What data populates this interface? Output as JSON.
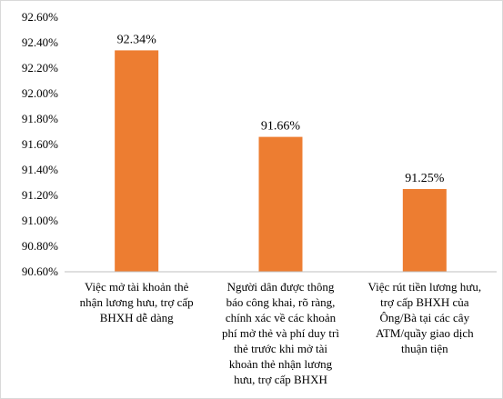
{
  "chart_data": {
    "type": "bar",
    "categories": [
      "Việc mở tài khoản thẻ\nnhận lương hưu, trợ cấp\nBHXH dễ dàng",
      "Người dân được thông\nbáo công khai, rõ ràng,\nchính xác về các khoản\nphí mở thẻ và phí duy trì\nthẻ trước khi mở tài\nkhoản thẻ nhận lương\nhưu, trợ cấp BHXH",
      "Việc rút tiền lương hưu,\ntrợ cấp BHXH của\nÔng/Bà tại các cây\nATM/quầy giao dịch\nthuận tiện"
    ],
    "values": [
      92.34,
      91.66,
      91.25
    ],
    "data_labels": [
      "92.34%",
      "91.66%",
      "91.25%"
    ],
    "ylim": [
      90.6,
      92.6
    ],
    "yticks": [
      90.6,
      90.8,
      91.0,
      91.2,
      91.4,
      91.6,
      91.8,
      92.0,
      92.2,
      92.4,
      92.6
    ],
    "ytick_labels": [
      "90.60%",
      "90.80%",
      "91.00%",
      "91.20%",
      "91.40%",
      "91.60%",
      "91.80%",
      "92.00%",
      "92.20%",
      "92.40%",
      "92.60%"
    ],
    "bar_color": "#ED7D31",
    "grid": false,
    "legend": "none"
  }
}
